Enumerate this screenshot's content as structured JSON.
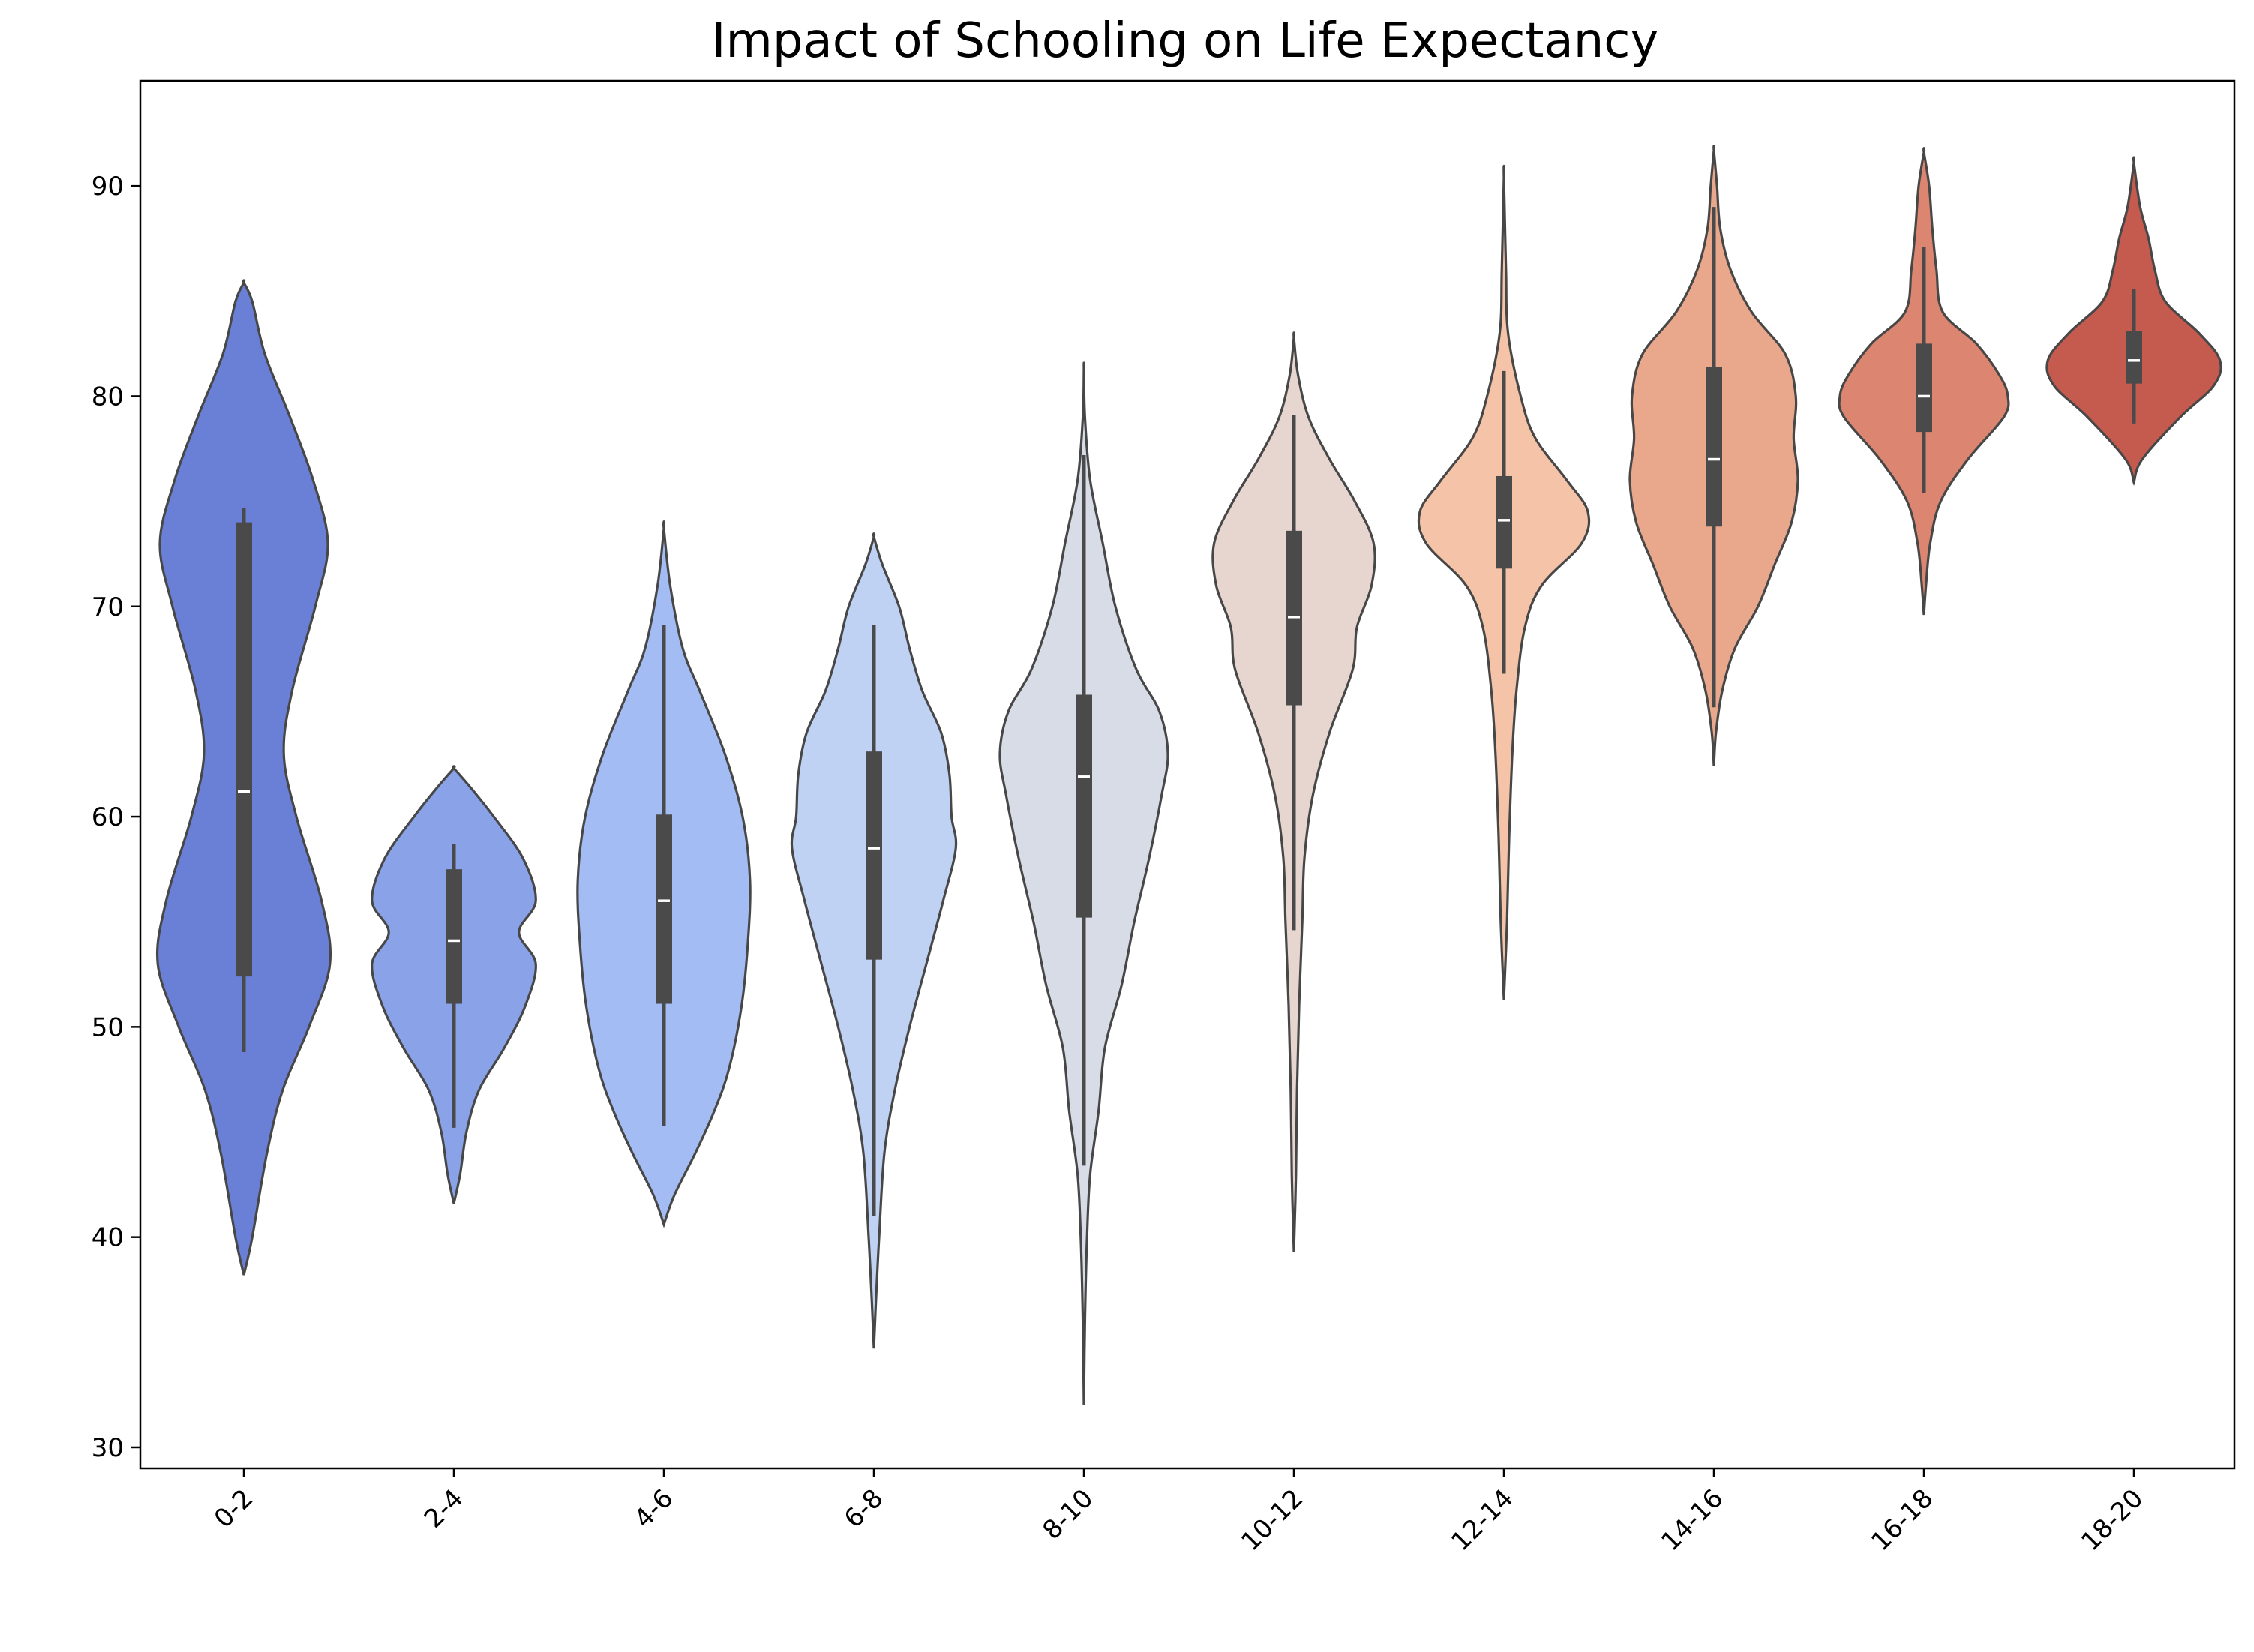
{
  "chart_data": {
    "type": "violin",
    "title": "Impact of Schooling on Life Expectancy",
    "xlabel": "",
    "ylabel": "",
    "ylim": [
      29,
      95
    ],
    "yticks": [
      30,
      40,
      50,
      60,
      70,
      80,
      90
    ],
    "grid": false,
    "legend": "none",
    "categories": [
      "0-2",
      "2-4",
      "4-6",
      "6-8",
      "8-10",
      "10-12",
      "12-14",
      "14-16",
      "16-18",
      "18-20"
    ],
    "colors": [
      "#6a80d6",
      "#89a2e8",
      "#a3bcf4",
      "#c0d2f3",
      "#d7dce7",
      "#e7d6cf",
      "#f4c3a8",
      "#e9a78c",
      "#dc8570",
      "#c55a4f"
    ],
    "series": [
      {
        "min": 38.2,
        "max": 85.4,
        "q1": 52.4,
        "median": 61.2,
        "q3": 74.0,
        "whisker_low": 48.8,
        "whisker_high": 74.7,
        "profile": [
          [
            38.2,
            0
          ],
          [
            40,
            0.08
          ],
          [
            44,
            0.22
          ],
          [
            47,
            0.37
          ],
          [
            50,
            0.62
          ],
          [
            53,
            0.82
          ],
          [
            56,
            0.74
          ],
          [
            60,
            0.5
          ],
          [
            63,
            0.38
          ],
          [
            66,
            0.46
          ],
          [
            70,
            0.68
          ],
          [
            73,
            0.8
          ],
          [
            76,
            0.66
          ],
          [
            79,
            0.44
          ],
          [
            82,
            0.2
          ],
          [
            84.5,
            0.08
          ],
          [
            85.4,
            0
          ]
        ]
      },
      {
        "min": 41.6,
        "max": 62.3,
        "q1": 51.1,
        "median": 54.1,
        "q3": 57.5,
        "whisker_low": 45.2,
        "whisker_high": 58.7,
        "profile": [
          [
            41.6,
            0
          ],
          [
            43,
            0.06
          ],
          [
            45,
            0.12
          ],
          [
            47,
            0.24
          ],
          [
            49,
            0.48
          ],
          [
            51,
            0.68
          ],
          [
            53,
            0.78
          ],
          [
            54.5,
            0.62
          ],
          [
            56,
            0.78
          ],
          [
            58,
            0.66
          ],
          [
            60,
            0.38
          ],
          [
            61.5,
            0.14
          ],
          [
            62.3,
            0
          ]
        ]
      },
      {
        "min": 40.6,
        "max": 73.7,
        "q1": 51.1,
        "median": 56.0,
        "q3": 60.1,
        "whisker_low": 45.3,
        "whisker_high": 69.1,
        "profile": [
          [
            40.6,
            0
          ],
          [
            42,
            0.1
          ],
          [
            44,
            0.3
          ],
          [
            46,
            0.48
          ],
          [
            48,
            0.62
          ],
          [
            51,
            0.74
          ],
          [
            54,
            0.8
          ],
          [
            57,
            0.82
          ],
          [
            60,
            0.75
          ],
          [
            63,
            0.58
          ],
          [
            66,
            0.34
          ],
          [
            68,
            0.18
          ],
          [
            71,
            0.06
          ],
          [
            73.7,
            0
          ]
        ]
      },
      {
        "min": 34.7,
        "max": 73.3,
        "q1": 53.2,
        "median": 58.5,
        "q3": 63.1,
        "whisker_low": 41.0,
        "whisker_high": 69.1,
        "profile": [
          [
            34.7,
            0
          ],
          [
            37,
            0.02
          ],
          [
            40,
            0.05
          ],
          [
            44,
            0.1
          ],
          [
            47,
            0.2
          ],
          [
            50,
            0.34
          ],
          [
            53,
            0.5
          ],
          [
            56,
            0.66
          ],
          [
            58.5,
            0.78
          ],
          [
            60,
            0.74
          ],
          [
            62,
            0.72
          ],
          [
            64,
            0.64
          ],
          [
            66,
            0.46
          ],
          [
            68,
            0.34
          ],
          [
            70,
            0.24
          ],
          [
            72,
            0.08
          ],
          [
            73.3,
            0
          ]
        ]
      },
      {
        "min": 32.0,
        "max": 81.3,
        "q1": 55.2,
        "median": 61.9,
        "q3": 65.8,
        "whisker_low": 43.4,
        "whisker_high": 77.2,
        "profile": [
          [
            32,
            0
          ],
          [
            36,
            0.01
          ],
          [
            40,
            0.03
          ],
          [
            43,
            0.06
          ],
          [
            46,
            0.14
          ],
          [
            49,
            0.2
          ],
          [
            52,
            0.36
          ],
          [
            55,
            0.48
          ],
          [
            58,
            0.62
          ],
          [
            61,
            0.74
          ],
          [
            63,
            0.8
          ],
          [
            65,
            0.72
          ],
          [
            67,
            0.5
          ],
          [
            70,
            0.3
          ],
          [
            73,
            0.18
          ],
          [
            76,
            0.06
          ],
          [
            79,
            0.01
          ],
          [
            81.3,
            0
          ]
        ]
      },
      {
        "min": 39.3,
        "max": 82.8,
        "q1": 65.3,
        "median": 69.5,
        "q3": 73.6,
        "whisker_low": 54.6,
        "whisker_high": 79.1,
        "profile": [
          [
            39.3,
            0
          ],
          [
            43,
            0.02
          ],
          [
            47,
            0.03
          ],
          [
            51,
            0.05
          ],
          [
            55,
            0.08
          ],
          [
            58,
            0.1
          ],
          [
            61,
            0.18
          ],
          [
            64,
            0.34
          ],
          [
            67,
            0.56
          ],
          [
            69,
            0.6
          ],
          [
            71,
            0.74
          ],
          [
            73,
            0.76
          ],
          [
            75,
            0.58
          ],
          [
            77,
            0.34
          ],
          [
            79,
            0.14
          ],
          [
            81,
            0.04
          ],
          [
            82.8,
            0
          ]
        ]
      },
      {
        "min": 51.3,
        "max": 90.4,
        "q1": 71.8,
        "median": 74.1,
        "q3": 76.2,
        "whisker_low": 66.8,
        "whisker_high": 81.2,
        "profile": [
          [
            51.3,
            0
          ],
          [
            55,
            0.03
          ],
          [
            59,
            0.05
          ],
          [
            63,
            0.08
          ],
          [
            66,
            0.12
          ],
          [
            69,
            0.2
          ],
          [
            71,
            0.36
          ],
          [
            73,
            0.74
          ],
          [
            74.5,
            0.8
          ],
          [
            76,
            0.6
          ],
          [
            78,
            0.3
          ],
          [
            80,
            0.16
          ],
          [
            83,
            0.04
          ],
          [
            86,
            0.02
          ],
          [
            90.4,
            0
          ]
        ]
      },
      {
        "min": 62.4,
        "max": 91.7,
        "q1": 73.8,
        "median": 77.0,
        "q3": 81.4,
        "whisker_low": 65.2,
        "whisker_high": 89.0,
        "profile": [
          [
            62.4,
            0
          ],
          [
            64,
            0.02
          ],
          [
            66,
            0.08
          ],
          [
            68,
            0.2
          ],
          [
            70,
            0.42
          ],
          [
            72,
            0.58
          ],
          [
            74,
            0.74
          ],
          [
            76,
            0.8
          ],
          [
            78,
            0.76
          ],
          [
            80,
            0.78
          ],
          [
            82,
            0.68
          ],
          [
            84,
            0.36
          ],
          [
            86,
            0.16
          ],
          [
            88,
            0.06
          ],
          [
            90,
            0.03
          ],
          [
            91.7,
            0
          ]
        ]
      },
      {
        "min": 69.6,
        "max": 91.6,
        "q1": 78.3,
        "median": 80.0,
        "q3": 82.5,
        "whisker_low": 75.4,
        "whisker_high": 87.1,
        "profile": [
          [
            69.6,
            0
          ],
          [
            71,
            0.02
          ],
          [
            73,
            0.06
          ],
          [
            75,
            0.16
          ],
          [
            77,
            0.42
          ],
          [
            79,
            0.76
          ],
          [
            80,
            0.8
          ],
          [
            81,
            0.72
          ],
          [
            82.5,
            0.5
          ],
          [
            84,
            0.18
          ],
          [
            86,
            0.12
          ],
          [
            88,
            0.08
          ],
          [
            90,
            0.05
          ],
          [
            91.6,
            0
          ]
        ]
      },
      {
        "min": 75.9,
        "max": 91.1,
        "q1": 80.6,
        "median": 81.7,
        "q3": 83.1,
        "whisker_low": 78.7,
        "whisker_high": 85.1,
        "profile": [
          [
            75.9,
            0
          ],
          [
            77,
            0.08
          ],
          [
            79,
            0.44
          ],
          [
            80.5,
            0.76
          ],
          [
            81.7,
            0.82
          ],
          [
            83,
            0.62
          ],
          [
            84.5,
            0.3
          ],
          [
            86,
            0.2
          ],
          [
            87.5,
            0.14
          ],
          [
            89,
            0.06
          ],
          [
            91.1,
            0
          ]
        ]
      }
    ]
  }
}
